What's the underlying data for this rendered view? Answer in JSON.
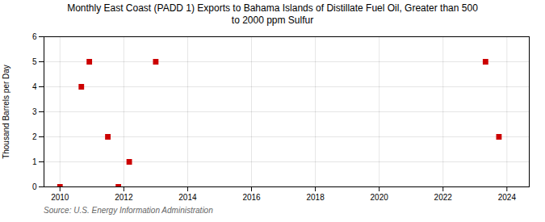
{
  "chart_data": {
    "type": "scatter",
    "title": "Monthly East Coast (PADD 1) Exports to Bahama Islands of Distillate Fuel Oil, Greater than 500\nto 2000 ppm Sulfur",
    "y_label": "Thousand Barrels per Day",
    "annotations": [
      "Source: U.S. Energy Information Administration"
    ],
    "x": [
      2010.0,
      2010.67,
      2010.92,
      2011.5,
      2011.83,
      2012.17,
      2013.0,
      2023.33,
      2023.75
    ],
    "values": [
      0,
      4,
      5,
      2,
      0,
      1,
      5,
      5,
      2
    ],
    "color": "#cc0000",
    "marker": "square",
    "xlim": [
      2009.5,
      2024.7
    ],
    "ylim": [
      0,
      6
    ],
    "xticks": [
      2010,
      2012,
      2014,
      2016,
      2018,
      2020,
      2022,
      2024
    ],
    "yticks": [
      0,
      1,
      2,
      3,
      4,
      5,
      6
    ],
    "grid": true
  }
}
